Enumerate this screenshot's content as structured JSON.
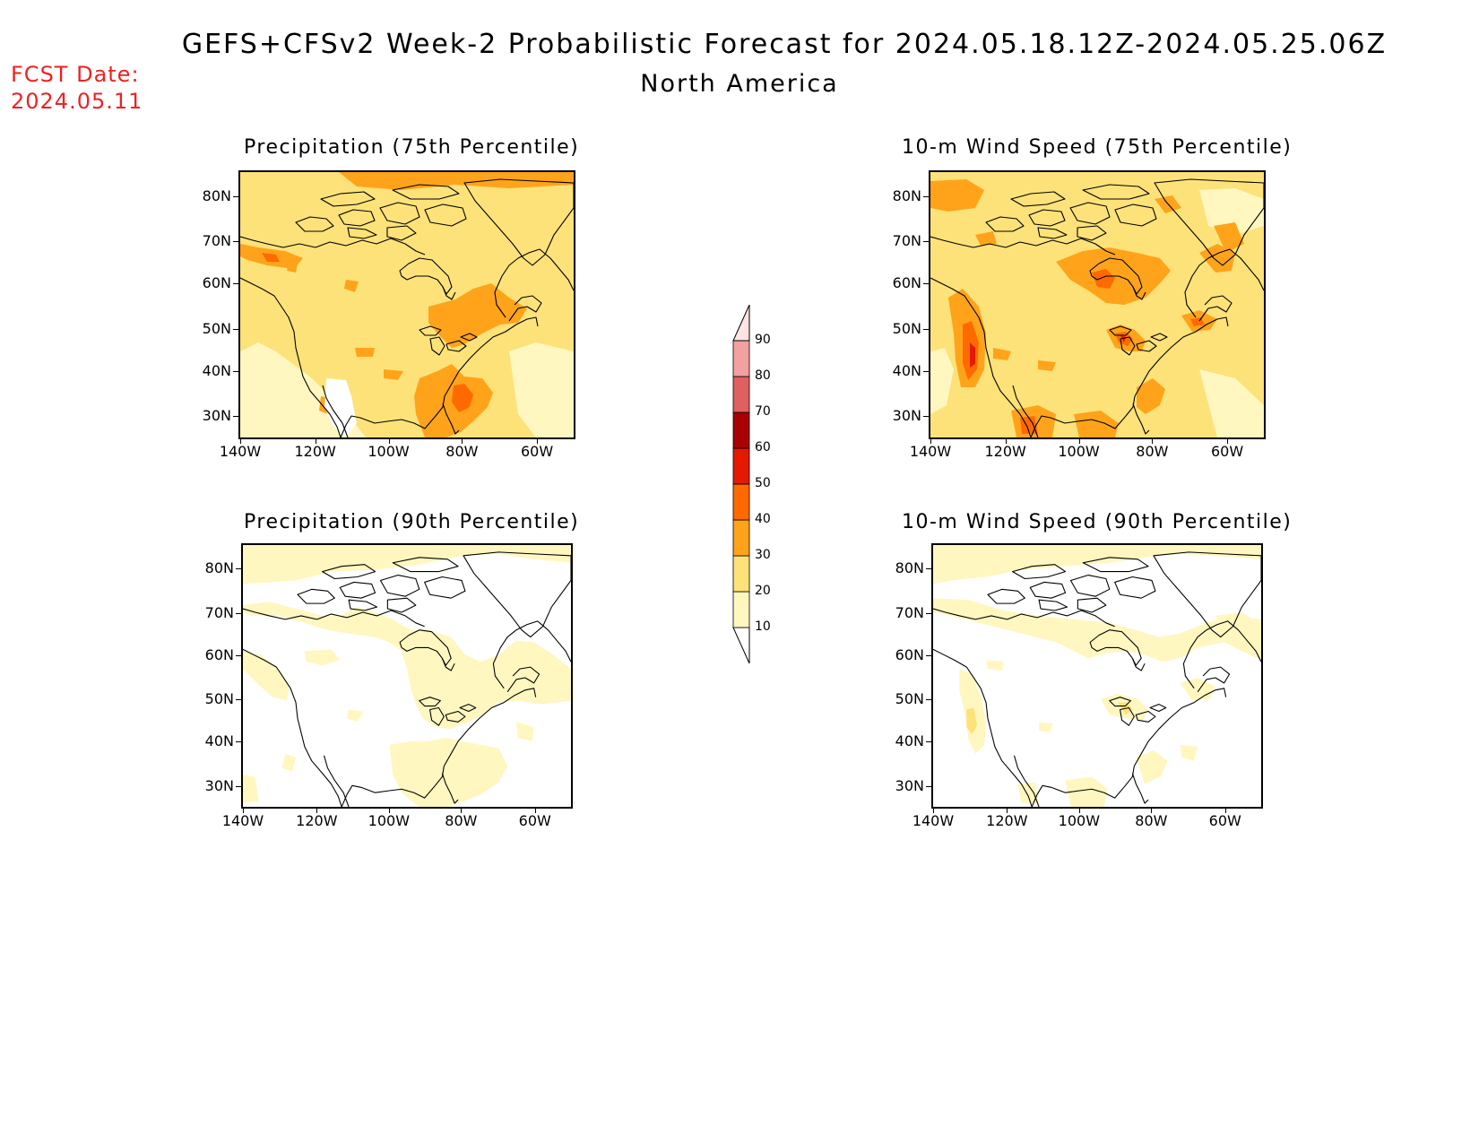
{
  "header": {
    "title": "GEFS+CFSv2 Week-2 Probabilistic Forecast for 2024.05.18.12Z-2024.05.25.06Z",
    "subtitle": "North America",
    "fcst_date_label": "FCST Date:",
    "fcst_date_value": "2024.05.11"
  },
  "colors": {
    "c10": "#fff7bf",
    "c20": "#fde27a",
    "c30": "#ffa31a",
    "c40": "#ff6a00",
    "c50": "#e31a00",
    "c60": "#a90000",
    "c70": "#e06060",
    "c80": "#f3a0a0",
    "c90": "#ffe4e4",
    "land_line": "#000000",
    "fcst_date": "#ee2222"
  },
  "colorbar": {
    "levels": [
      "10",
      "20",
      "30",
      "40",
      "50",
      "60",
      "70",
      "80",
      "90"
    ]
  },
  "axes": {
    "lat_labels": [
      "80N",
      "70N",
      "60N",
      "50N",
      "40N",
      "30N"
    ],
    "lon_labels": [
      "140W",
      "120W",
      "100W",
      "80W",
      "60W"
    ]
  },
  "panels": [
    {
      "id": "precip75",
      "title": "Precipitation (75th Percentile)",
      "variable": "precipitation",
      "percentile": 75,
      "base_level": "c20"
    },
    {
      "id": "wind75",
      "title": "10-m Wind Speed (75th Percentile)",
      "variable": "wind",
      "percentile": 75,
      "base_level": "c20"
    },
    {
      "id": "precip90",
      "title": "Precipitation (90th Percentile)",
      "variable": "precipitation",
      "percentile": 90,
      "base_level": "none"
    },
    {
      "id": "wind90",
      "title": "10-m Wind Speed (90th Percentile)",
      "variable": "wind",
      "percentile": 90,
      "base_level": "none"
    }
  ]
}
